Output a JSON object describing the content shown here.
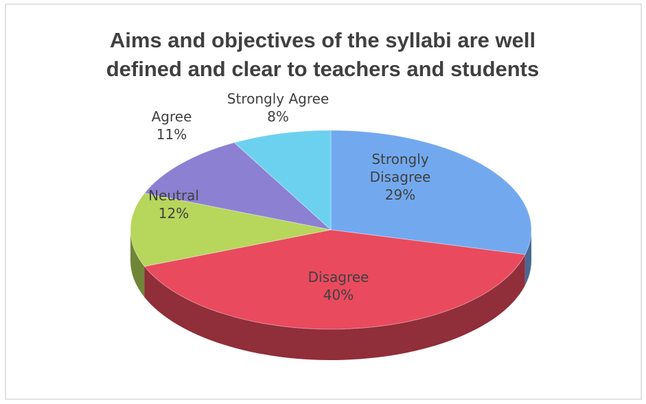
{
  "chart_data": {
    "type": "pie",
    "title": "Aims and objectives of the syllabi are well defined and clear to teachers and students",
    "categories": [
      "Strongly Disagree",
      "Disagree",
      "Neutral",
      "Agree",
      "Strongly Agree"
    ],
    "values": [
      29,
      40,
      12,
      11,
      8
    ],
    "value_labels": [
      "29%",
      "40%",
      "12%",
      "11%",
      "8%"
    ],
    "colors": [
      "#72a9ee",
      "#e94a5e",
      "#b7d65c",
      "#8c80d2",
      "#6cd1ef"
    ]
  }
}
